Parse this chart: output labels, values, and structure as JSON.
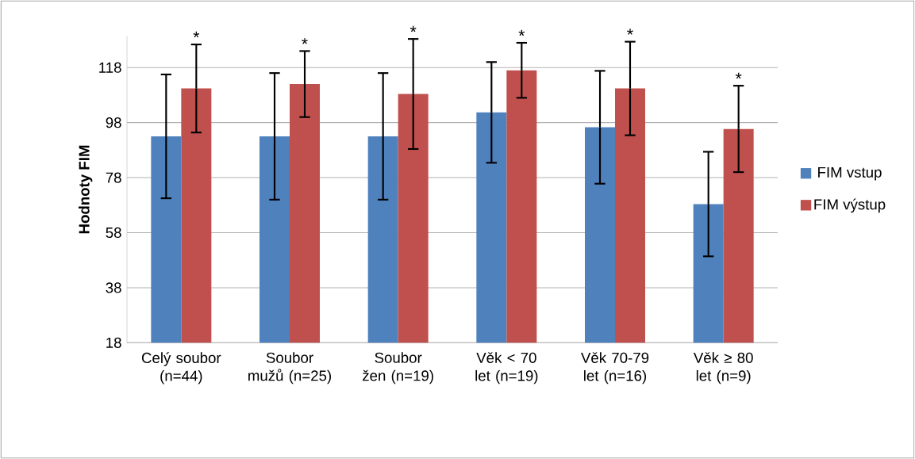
{
  "chart_data": {
    "type": "bar",
    "ylabel": "Hodnoty FIM",
    "categories": [
      "Celý soubor (n=44)",
      "Soubor mužů (n=25)",
      "Soubor žen (n=19)",
      "Věk < 70 let (n=19)",
      "Věk 70-79 let (n=16)",
      "Věk ≥ 80 let (n=9)"
    ],
    "series": [
      {
        "name": "FIM vstup",
        "color": "#4f81bd",
        "values": [
          93,
          93,
          93,
          101.7,
          96.3,
          68.4
        ],
        "errors": [
          22.5,
          23,
          23,
          18.3,
          20.5,
          19
        ]
      },
      {
        "name": "FIM výstup",
        "color": "#c0504d",
        "values": [
          110.4,
          112,
          108.4,
          117,
          110.4,
          95.7
        ],
        "errors": [
          16,
          12,
          20,
          10,
          17,
          15.7
        ]
      }
    ],
    "ylim": [
      18,
      129.4
    ],
    "yticks": [
      18,
      38,
      58,
      78,
      98,
      118
    ],
    "grid": "y",
    "legend": "right",
    "annotations": [
      "*",
      "*",
      "*",
      "*",
      "*",
      "*"
    ]
  }
}
